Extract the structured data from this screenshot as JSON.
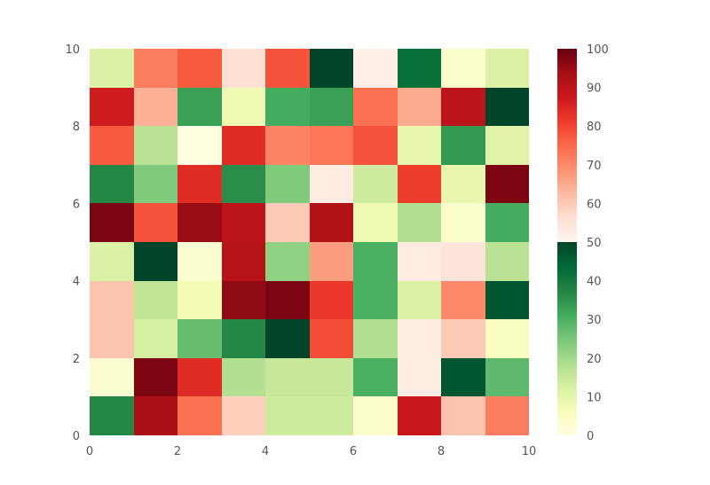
{
  "chart_data": {
    "type": "heatmap",
    "title": "",
    "xlabel": "",
    "ylabel": "",
    "xlim": [
      0,
      10
    ],
    "ylim": [
      0,
      10
    ],
    "x_ticks": [
      "0",
      "2",
      "4",
      "6",
      "8",
      "10"
    ],
    "y_ticks": [
      "0",
      "2",
      "4",
      "6",
      "8",
      "10"
    ],
    "grid": false,
    "rows_top_to_bottom": [
      [
        12,
        72,
        77,
        56,
        78,
        50,
        52,
        42,
        4,
        12
      ],
      [
        87,
        64,
        33,
        8,
        31,
        33,
        74,
        65,
        90,
        50
      ],
      [
        77,
        17,
        1,
        84,
        71,
        73,
        78,
        9,
        34,
        11
      ],
      [
        37,
        24,
        84,
        36,
        24,
        53,
        14,
        81,
        9,
        98
      ],
      [
        98,
        78,
        95,
        90,
        60,
        92,
        8,
        18,
        4,
        31
      ],
      [
        12,
        50,
        3,
        91,
        22,
        67,
        30,
        53,
        55,
        17
      ],
      [
        61,
        16,
        7,
        96,
        98,
        82,
        30,
        12,
        70,
        47
      ],
      [
        61,
        13,
        27,
        37,
        50,
        79,
        18,
        53,
        60,
        5
      ],
      [
        3,
        98,
        84,
        18,
        15,
        15,
        30,
        53,
        47,
        28
      ],
      [
        37,
        93,
        74,
        59,
        14,
        14,
        4,
        88,
        61,
        72
      ]
    ],
    "colorbar": {
      "range": [
        0,
        100
      ],
      "ticks": [
        "0",
        "10",
        "20",
        "30",
        "40",
        "50",
        "60",
        "70",
        "80",
        "90",
        "100"
      ],
      "segments": [
        {
          "from": 0,
          "to": 50,
          "cmap": "Greens"
        },
        {
          "from": 50,
          "to": 100,
          "cmap": "Reds"
        }
      ]
    }
  }
}
